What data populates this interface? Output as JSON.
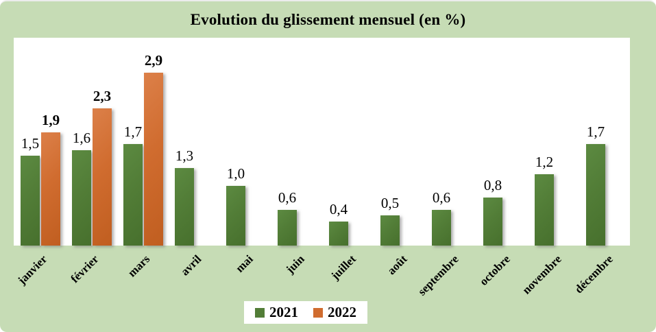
{
  "title": "Evolution du glissement mensuel (en %)",
  "colors": {
    "background": "#c6dcb5",
    "plot_background": "#ffffff",
    "series_2021": "#527d37",
    "series_2022": "#d06c2f",
    "text": "#000000"
  },
  "legend": {
    "position": "bottom",
    "items": [
      {
        "label": "2021",
        "color": "#527d37"
      },
      {
        "label": "2022",
        "color": "#d06c2f"
      }
    ]
  },
  "chart_data": {
    "type": "bar",
    "title": "Evolution du glissement mensuel (en %)",
    "categories": [
      "janvier",
      "février",
      "mars",
      "avril",
      "mai",
      "juin",
      "juillet",
      "août",
      "septembre",
      "octobre",
      "novembre",
      "décembre"
    ],
    "series": [
      {
        "name": "2021",
        "color": "#527d37",
        "values": [
          1.5,
          1.6,
          1.7,
          1.3,
          1.0,
          0.6,
          0.4,
          0.5,
          0.6,
          0.8,
          1.2,
          1.7
        ]
      },
      {
        "name": "2022",
        "color": "#d06c2f",
        "values": [
          1.9,
          2.3,
          2.9,
          null,
          null,
          null,
          null,
          null,
          null,
          null,
          null,
          null
        ]
      }
    ],
    "value_labels": [
      "1,5",
      "1,6",
      "1,7",
      "1,3",
      "1,0",
      "0,6",
      "0,4",
      "0,5",
      "0,6",
      "0,8",
      "1,2",
      "1,7",
      "1,9",
      "2,3",
      "2,9"
    ],
    "decimal_separator": ",",
    "xlabel": "",
    "ylabel": "",
    "ylim": [
      0,
      3.2
    ],
    "grid": false,
    "legend_position": "bottom",
    "x_tick_rotation": -45
  }
}
